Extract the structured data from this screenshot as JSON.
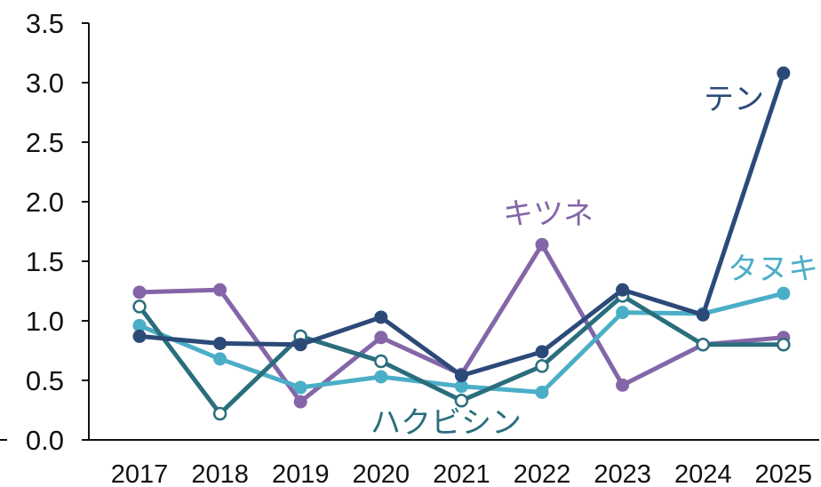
{
  "chart_data": {
    "type": "line",
    "x": [
      "2017",
      "2018",
      "2019",
      "2020",
      "2021",
      "2022",
      "2023",
      "2024",
      "2025"
    ],
    "ylim": [
      0.0,
      3.5
    ],
    "yticks": [
      "0.0",
      "0.5",
      "1.0",
      "1.5",
      "2.0",
      "2.5",
      "3.0",
      "3.5"
    ],
    "grid": false,
    "legend": "labels placed beside lines",
    "series": [
      {
        "name": "キツネ",
        "color": "#8466A8",
        "marker": "filled",
        "values": [
          1.24,
          1.26,
          0.32,
          0.86,
          0.55,
          1.64,
          0.46,
          0.8,
          0.86
        ]
      },
      {
        "name": "タヌキ",
        "color": "#4BAEC7",
        "marker": "filled",
        "values": [
          0.96,
          0.68,
          0.44,
          0.53,
          0.45,
          0.4,
          1.07,
          1.06,
          1.23
        ]
      },
      {
        "name": "ハクビシン",
        "color": "#2A6E7D",
        "marker": "hollow",
        "values": [
          1.12,
          0.22,
          0.87,
          0.66,
          0.33,
          0.62,
          1.21,
          0.8,
          0.8
        ]
      },
      {
        "name": "テン",
        "color": "#2B4A78",
        "marker": "filled",
        "values": [
          0.87,
          0.81,
          0.8,
          1.03,
          0.54,
          0.74,
          1.26,
          1.05,
          3.08
        ]
      }
    ]
  }
}
